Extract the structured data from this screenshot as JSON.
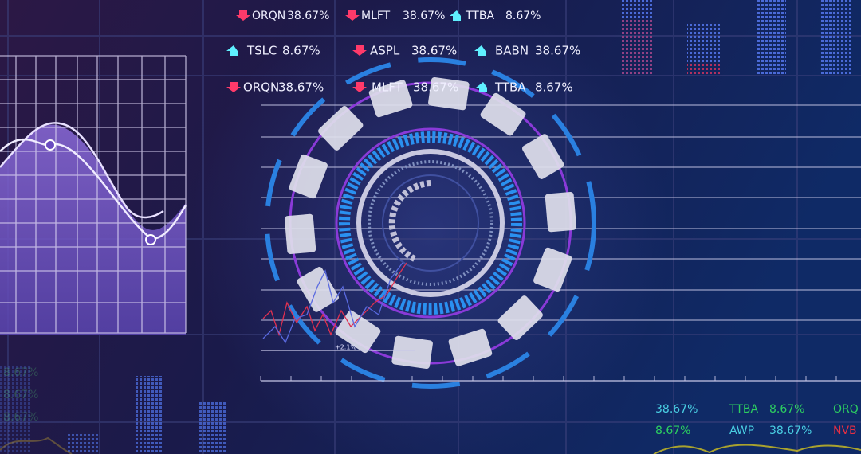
{
  "tickers": [
    [
      {
        "symbol": "ORQN",
        "value": "38.67%",
        "trend": "down"
      },
      {
        "symbol": "MLFT",
        "value": "38.67%",
        "trend": "down"
      },
      {
        "symbol": "TTBA",
        "value": "8.67%",
        "trend": "up"
      }
    ],
    [
      {
        "symbol": "TSLC",
        "value": "8.67%",
        "trend": "up"
      },
      {
        "symbol": "ASPL",
        "value": "38.67%",
        "trend": "down"
      },
      {
        "symbol": "BABN",
        "value": "38.67%",
        "trend": "up"
      }
    ],
    [
      {
        "symbol": "ORQN",
        "value": "38.67%",
        "trend": "down"
      },
      {
        "symbol": "MLFT",
        "value": "38.67%",
        "trend": "down"
      },
      {
        "symbol": "TTBA",
        "value": "8.67%",
        "trend": "up"
      }
    ]
  ],
  "mini_chart_label": "+2.1%",
  "bottom_right": [
    [
      "38.67%",
      "TTBA",
      "8.67%",
      "ORQ"
    ],
    [
      "8.67%",
      "AWP",
      "38.67%",
      "NVB"
    ]
  ],
  "faded_left": [
    "8.67%",
    "8.67%",
    "8.67%"
  ]
}
